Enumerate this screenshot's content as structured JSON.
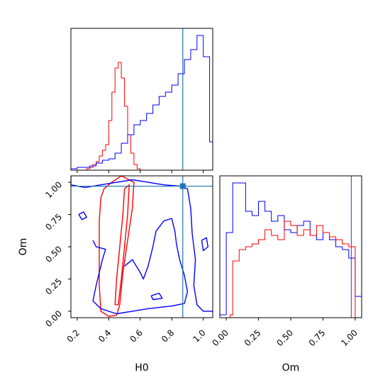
{
  "chart_data": [
    {
      "panel": "H0 marginal",
      "type": "line",
      "series": [
        {
          "color": "#ff0000",
          "x": [
            0.16,
            0.18,
            0.2,
            0.22,
            0.24,
            0.26,
            0.28,
            0.3,
            0.32,
            0.34,
            0.36,
            0.38,
            0.4,
            0.42,
            0.44,
            0.46,
            0.48,
            0.5,
            0.52,
            0.54,
            0.56,
            0.58,
            0.6,
            1.06
          ],
          "y": [
            0,
            0,
            0,
            0,
            0,
            0.01,
            0.02,
            0.04,
            0.06,
            0.1,
            0.14,
            0.18,
            0.35,
            0.55,
            0.72,
            0.76,
            0.65,
            0.45,
            0.25,
            0.12,
            0.04,
            0.01,
            0,
            0
          ]
        },
        {
          "color": "#0000ff",
          "x": [
            0.16,
            0.2,
            0.24,
            0.28,
            0.32,
            0.36,
            0.4,
            0.44,
            0.48,
            0.52,
            0.56,
            0.6,
            0.64,
            0.68,
            0.72,
            0.76,
            0.8,
            0.84,
            0.88,
            0.92,
            0.96,
            1.0,
            1.04,
            1.06
          ],
          "y": [
            0.01,
            0.02,
            0.02,
            0.03,
            0.05,
            0.07,
            0.08,
            0.12,
            0.19,
            0.25,
            0.32,
            0.35,
            0.4,
            0.46,
            0.52,
            0.55,
            0.6,
            0.68,
            0.78,
            0.85,
            0.95,
            0.8,
            0.2,
            0.02
          ]
        }
      ],
      "truth_x": 0.87,
      "xlim": [
        0.16,
        1.06
      ]
    },
    {
      "panel": "H0 vs Om",
      "type": "scatter",
      "xlabel": "H0",
      "ylabel": "Om",
      "x_ticks": [
        "0.2",
        "0.4",
        "0.6",
        "0.8",
        "1.0"
      ],
      "x_tick_values": [
        0.2,
        0.4,
        0.6,
        0.8,
        1.0
      ],
      "y_ticks": [
        "0.00",
        "0.25",
        "0.50",
        "0.75",
        "1.00"
      ],
      "y_tick_values": [
        0.0,
        0.25,
        0.5,
        0.75,
        1.0
      ],
      "xlim": [
        0.16,
        1.06
      ],
      "ylim": [
        -0.05,
        1.05
      ],
      "truth": [
        0.87,
        0.97
      ],
      "contours": [
        {
          "color": "#ff0000",
          "points": [
            [
              0.35,
              0.88
            ],
            [
              0.34,
              0.7
            ],
            [
              0.34,
              0.45
            ],
            [
              0.34,
              0.2
            ],
            [
              0.35,
              0.0
            ],
            [
              0.4,
              -0.04
            ],
            [
              0.45,
              -0.03
            ],
            [
              0.47,
              0.05
            ],
            [
              0.49,
              0.3
            ],
            [
              0.52,
              0.55
            ],
            [
              0.55,
              0.8
            ],
            [
              0.56,
              1.0
            ],
            [
              0.48,
              1.05
            ],
            [
              0.42,
              1.0
            ],
            [
              0.37,
              0.95
            ],
            [
              0.35,
              0.88
            ]
          ]
        },
        {
          "color": "#ff0000",
          "points": [
            [
              0.44,
              0.05
            ],
            [
              0.45,
              0.25
            ],
            [
              0.47,
              0.5
            ],
            [
              0.49,
              0.75
            ],
            [
              0.5,
              0.95
            ],
            [
              0.53,
              0.98
            ],
            [
              0.52,
              0.75
            ],
            [
              0.5,
              0.5
            ],
            [
              0.48,
              0.25
            ],
            [
              0.46,
              0.05
            ],
            [
              0.44,
              0.05
            ]
          ]
        },
        {
          "color": "#0000ff",
          "points": [
            [
              0.16,
              1.05
            ],
            [
              0.16,
              0.98
            ],
            [
              0.25,
              0.96
            ],
            [
              0.35,
              0.98
            ],
            [
              0.45,
              1.0
            ],
            [
              0.55,
              1.02
            ],
            [
              0.65,
              1.0
            ],
            [
              0.75,
              0.98
            ],
            [
              0.85,
              0.97
            ],
            [
              0.9,
              0.95
            ],
            [
              0.92,
              0.8
            ],
            [
              0.93,
              0.6
            ],
            [
              0.95,
              0.4
            ],
            [
              0.94,
              0.2
            ],
            [
              0.96,
              0.05
            ],
            [
              1.0,
              0.0
            ],
            [
              1.06,
              0.0
            ]
          ]
        },
        {
          "color": "#0000ff",
          "points": [
            [
              0.3,
              0.55
            ],
            [
              0.32,
              0.5
            ],
            [
              0.38,
              0.48
            ],
            [
              0.36,
              0.4
            ],
            [
              0.32,
              0.2
            ],
            [
              0.3,
              0.08
            ],
            [
              0.35,
              0.02
            ],
            [
              0.45,
              -0.02
            ],
            [
              0.55,
              0.0
            ],
            [
              0.65,
              0.02
            ],
            [
              0.8,
              0.04
            ],
            [
              0.88,
              0.06
            ],
            [
              0.9,
              0.15
            ],
            [
              0.88,
              0.28
            ],
            [
              0.85,
              0.4
            ],
            [
              0.83,
              0.52
            ],
            [
              0.82,
              0.62
            ],
            [
              0.8,
              0.72
            ],
            [
              0.75,
              0.7
            ],
            [
              0.7,
              0.62
            ],
            [
              0.68,
              0.5
            ],
            [
              0.65,
              0.35
            ],
            [
              0.62,
              0.25
            ],
            [
              0.6,
              0.3
            ],
            [
              0.55,
              0.4
            ],
            [
              0.5,
              0.35
            ]
          ]
        },
        {
          "color": "#0000ff",
          "points": [
            [
              0.21,
              0.75
            ],
            [
              0.24,
              0.77
            ],
            [
              0.26,
              0.73
            ],
            [
              0.23,
              0.71
            ],
            [
              0.21,
              0.75
            ]
          ]
        },
        {
          "color": "#0000ff",
          "points": [
            [
              0.67,
              0.12
            ],
            [
              0.72,
              0.14
            ],
            [
              0.74,
              0.1
            ],
            [
              0.68,
              0.09
            ],
            [
              0.67,
              0.12
            ]
          ]
        },
        {
          "color": "#0000ff",
          "points": [
            [
              0.99,
              0.55
            ],
            [
              1.02,
              0.57
            ],
            [
              1.03,
              0.5
            ],
            [
              1.0,
              0.47
            ],
            [
              0.99,
              0.55
            ]
          ]
        }
      ]
    },
    {
      "panel": "Om marginal",
      "type": "line",
      "xlabel": "Om",
      "x_ticks": [
        "0.00",
        "0.25",
        "0.50",
        "0.75",
        "1.00"
      ],
      "x_tick_values": [
        0.0,
        0.25,
        0.5,
        0.75,
        1.0
      ],
      "xlim": [
        -0.05,
        1.05
      ],
      "series": [
        {
          "color": "#0000ff",
          "x": [
            -0.05,
            0.0,
            0.05,
            0.1,
            0.15,
            0.2,
            0.25,
            0.3,
            0.35,
            0.4,
            0.45,
            0.5,
            0.55,
            0.6,
            0.65,
            0.7,
            0.75,
            0.8,
            0.85,
            0.9,
            0.95,
            1.0,
            1.05
          ],
          "y": [
            0.02,
            0.6,
            0.95,
            0.95,
            0.75,
            0.72,
            0.82,
            0.75,
            0.68,
            0.72,
            0.62,
            0.6,
            0.65,
            0.68,
            0.58,
            0.55,
            0.6,
            0.55,
            0.5,
            0.48,
            0.42,
            0.15,
            0.05
          ]
        },
        {
          "color": "#ff0000",
          "x": [
            0.0,
            0.03,
            0.05,
            0.1,
            0.15,
            0.2,
            0.25,
            0.3,
            0.35,
            0.4,
            0.45,
            0.5,
            0.55,
            0.6,
            0.65,
            0.7,
            0.75,
            0.8,
            0.85,
            0.9,
            0.95,
            1.0
          ],
          "y": [
            0.0,
            0.02,
            0.4,
            0.48,
            0.5,
            0.52,
            0.55,
            0.62,
            0.58,
            0.55,
            0.68,
            0.65,
            0.58,
            0.62,
            0.58,
            0.65,
            0.6,
            0.57,
            0.55,
            0.52,
            0.5,
            0.0
          ]
        }
      ],
      "truth_x": 0.97
    }
  ]
}
